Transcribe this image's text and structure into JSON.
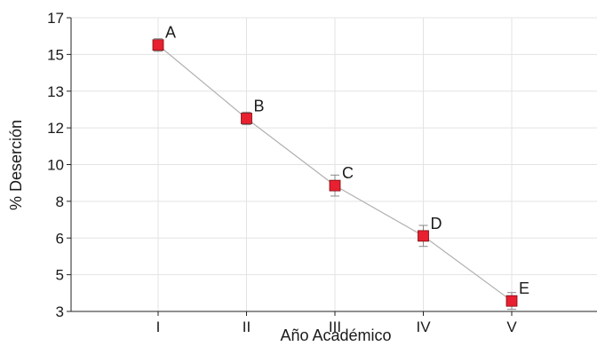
{
  "chart_data": {
    "type": "line",
    "title": "",
    "xlabel": "Año  Académico",
    "ylabel": "% Deserción",
    "categories": [
      "I",
      "II",
      "III",
      "IV",
      "V"
    ],
    "y_tick_labels": [
      "3",
      "5",
      "6",
      "8",
      "10",
      "12",
      "13",
      "15",
      "17"
    ],
    "ylim": [
      3,
      17
    ],
    "grid": true,
    "series": [
      {
        "values": [
          15.7,
          12.2,
          9.0,
          6.6,
          3.5
        ],
        "error": [
          0.3,
          0.3,
          0.5,
          0.5,
          0.4
        ],
        "point_labels": [
          "A",
          "B",
          "C",
          "D",
          "E"
        ],
        "marker_color": "#e8202f",
        "line_color": "#b0b0b0"
      }
    ]
  }
}
